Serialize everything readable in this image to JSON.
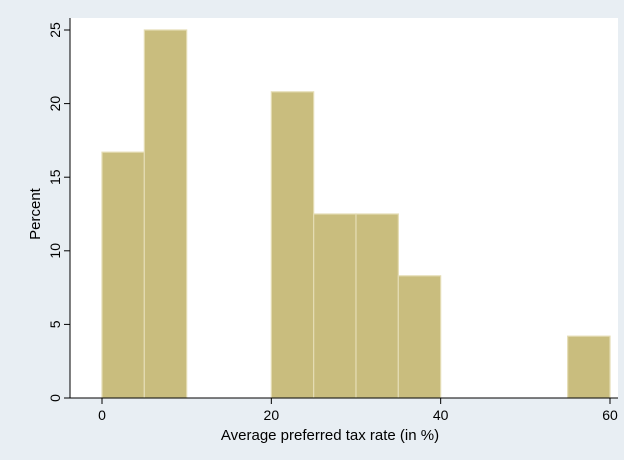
{
  "chart_data": {
    "type": "bar",
    "subtype": "histogram",
    "bin_width": 5,
    "bins": [
      {
        "x0": 0,
        "x1": 5,
        "value": 16.7
      },
      {
        "x0": 5,
        "x1": 10,
        "value": 25.0
      },
      {
        "x0": 20,
        "x1": 25,
        "value": 20.8
      },
      {
        "x0": 25,
        "x1": 30,
        "value": 12.5
      },
      {
        "x0": 30,
        "x1": 35,
        "value": 12.5
      },
      {
        "x0": 35,
        "x1": 40,
        "value": 8.3
      },
      {
        "x0": 55,
        "x1": 60,
        "value": 4.2
      }
    ],
    "xlabel": "Average preferred tax rate (in %)",
    "ylabel": "Percent",
    "xlim": [
      -4,
      61
    ],
    "ylim": [
      0,
      26
    ],
    "xticks": [
      0,
      20,
      40,
      60
    ],
    "yticks": [
      0,
      5,
      10,
      15,
      20,
      25
    ],
    "grid": false,
    "legend": "none",
    "colors": {
      "background": "#e8eef3",
      "plot_background": "#ffffff",
      "bar_fill": "#c9bd7e",
      "bar_stroke": "#e4dcb4",
      "axis": "#000000",
      "text": "#000000"
    }
  }
}
